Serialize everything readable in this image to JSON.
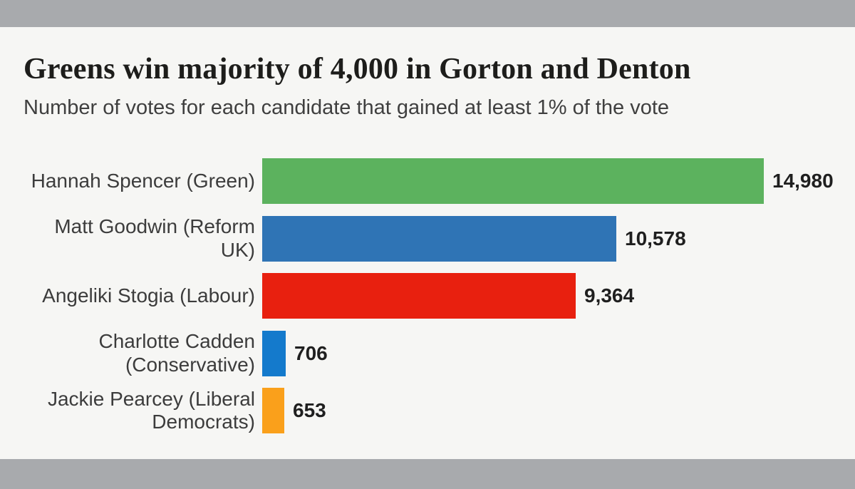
{
  "header": {
    "title": "Greens win majority of 4,000 in Gorton and Denton",
    "subtitle": "Number of votes for each candidate that gained at least 1% of the vote"
  },
  "chart_data": {
    "type": "bar",
    "orientation": "horizontal",
    "title": "Greens win majority of 4,000 in Gorton and Denton",
    "subtitle": "Number of votes for each candidate that gained at least 1% of the vote",
    "categories": [
      "Hannah Spencer (Green)",
      "Matt Goodwin (Reform\nUK)",
      "Angeliki Stogia (Labour)",
      "Charlotte Cadden\n(Conservative)",
      "Jackie Pearcey (Liberal\nDemocrats)"
    ],
    "values": [
      14980,
      10578,
      9364,
      706,
      653
    ],
    "value_labels": [
      "14,980",
      "10,578",
      "9,364",
      "706",
      "653"
    ],
    "bar_colors": [
      "#5cb25e",
      "#2f74b5",
      "#e8200f",
      "#147acc",
      "#faa01b"
    ],
    "xlim": [
      0,
      14980
    ],
    "grid": false,
    "legend": false,
    "xlabel": "",
    "ylabel": ""
  },
  "colors": {
    "frame_gray": "#a8aaad",
    "card_background": "#f6f6f4",
    "title_text": "#1d1d1b",
    "subtitle_text": "#3f3f3f",
    "label_text": "#3c3c3c",
    "value_text": "#1f1f1f"
  }
}
